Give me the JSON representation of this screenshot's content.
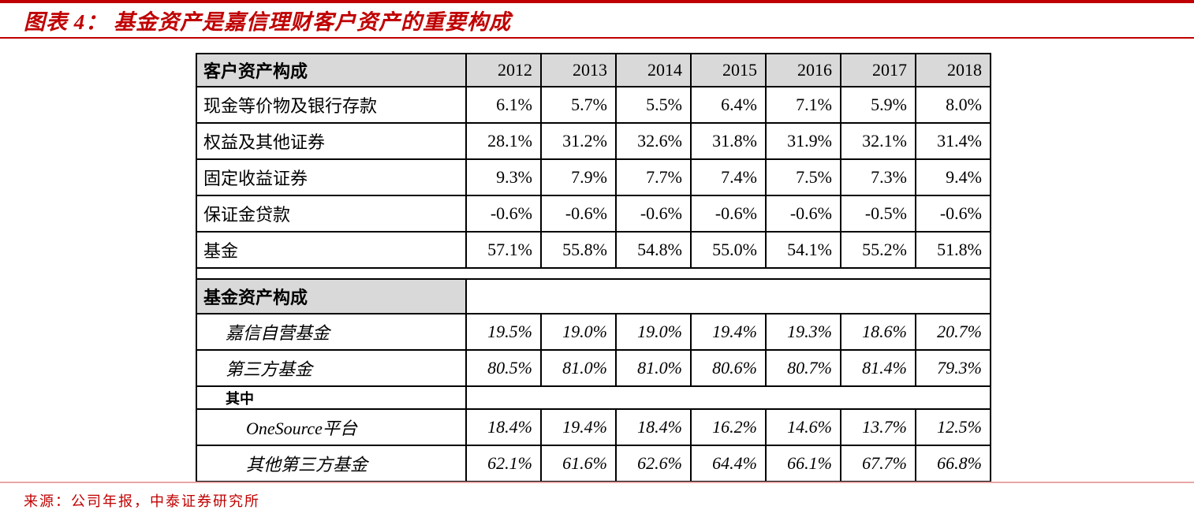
{
  "page": {
    "title": "图表 4：  基金资产是嘉信理财客户资产的重要构成",
    "source": "来源：公司年报，中泰证券研究所"
  },
  "colors": {
    "accent_red": "#c00000",
    "footer_line_pink": "#e8a6a6",
    "header_gray": "#d9d9d9",
    "border_black": "#000000",
    "text_black": "#000000",
    "page_bg": "#ffffff"
  },
  "chart_data": {
    "type": "table",
    "title": "图表 4：  基金资产是嘉信理财客户资产的重要构成",
    "columns": [
      "客户资产构成",
      "2012",
      "2013",
      "2014",
      "2015",
      "2016",
      "2017",
      "2018"
    ],
    "sections": [
      {
        "name": "客户资产构成",
        "rows": [
          {
            "label": "现金等价物及银行存款",
            "values": [
              "6.1%",
              "5.7%",
              "5.5%",
              "6.4%",
              "7.1%",
              "5.9%",
              "8.0%"
            ]
          },
          {
            "label": "权益及其他证券",
            "values": [
              "28.1%",
              "31.2%",
              "32.6%",
              "31.8%",
              "31.9%",
              "32.1%",
              "31.4%"
            ]
          },
          {
            "label": "固定收益证券",
            "values": [
              "9.3%",
              "7.9%",
              "7.7%",
              "7.4%",
              "7.5%",
              "7.3%",
              "9.4%"
            ]
          },
          {
            "label": "保证金贷款",
            "values": [
              "-0.6%",
              "-0.6%",
              "-0.6%",
              "-0.6%",
              "-0.6%",
              "-0.5%",
              "-0.6%"
            ]
          },
          {
            "label": "基金",
            "values": [
              "57.1%",
              "55.8%",
              "54.8%",
              "55.0%",
              "54.1%",
              "55.2%",
              "51.8%"
            ]
          }
        ]
      },
      {
        "name": "基金资产构成",
        "rows": [
          {
            "label": "嘉信自营基金",
            "values": [
              "19.5%",
              "19.0%",
              "19.0%",
              "19.4%",
              "19.3%",
              "18.6%",
              "20.7%"
            ]
          },
          {
            "label": "第三方基金",
            "values": [
              "80.5%",
              "81.0%",
              "81.0%",
              "80.6%",
              "80.7%",
              "81.4%",
              "79.3%"
            ]
          }
        ],
        "subheader": "其中",
        "subrows": [
          {
            "label": "OneSource平台",
            "values": [
              "18.4%",
              "19.4%",
              "18.4%",
              "16.2%",
              "14.6%",
              "13.7%",
              "12.5%"
            ]
          },
          {
            "label": "其他第三方基金",
            "values": [
              "62.1%",
              "61.6%",
              "62.6%",
              "64.4%",
              "66.1%",
              "67.7%",
              "66.8%"
            ]
          }
        ]
      }
    ],
    "source": "来源：公司年报，中泰证券研究所"
  },
  "table_layout": {
    "label_col_width": 342,
    "year_col_width": 95
  }
}
